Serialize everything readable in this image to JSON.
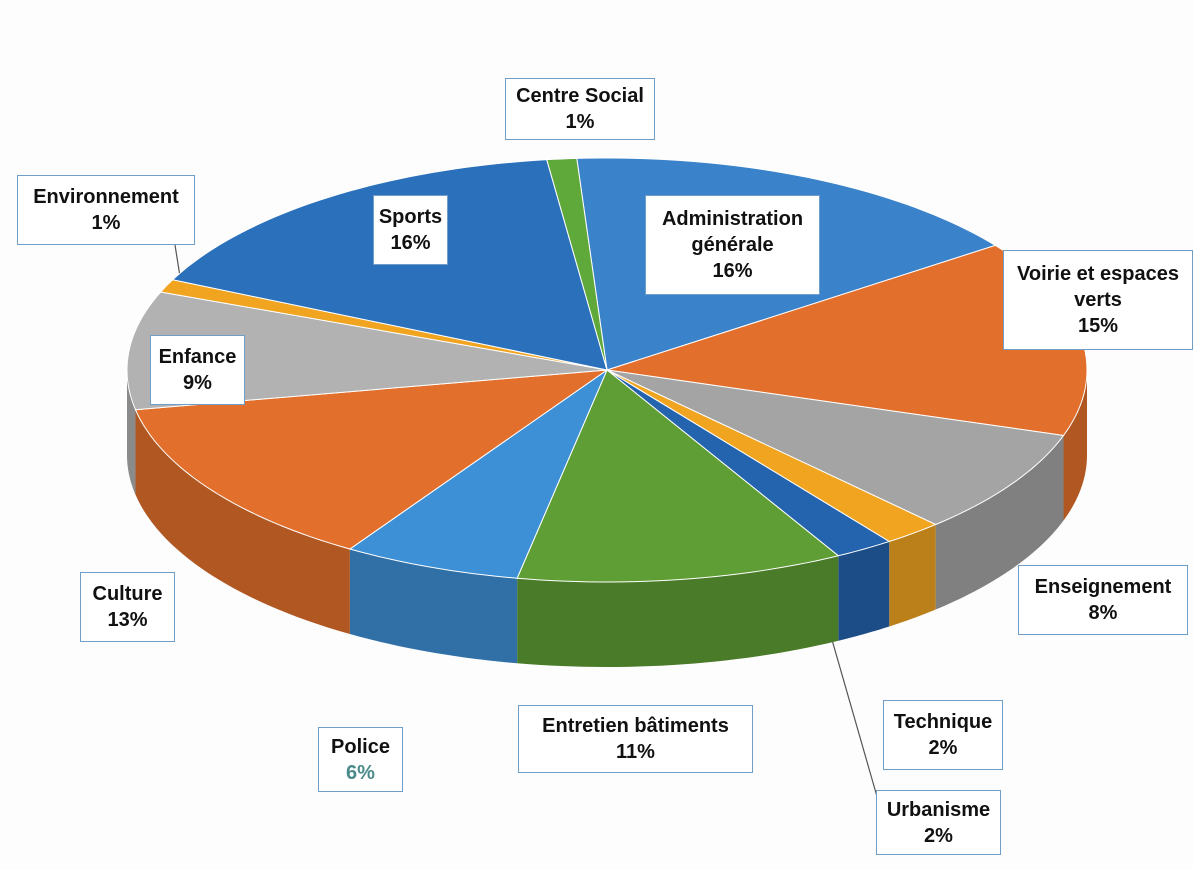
{
  "chart_data": {
    "type": "pie",
    "categories": [
      "Administration générale",
      "Voirie et espaces verts",
      "Enseignement",
      "Technique",
      "Urbanisme",
      "Entretien bâtiments",
      "Police",
      "Culture",
      "Enfance",
      "Environnement",
      "Sports",
      "Centre Social"
    ],
    "values": [
      16,
      15,
      8,
      2,
      2,
      11,
      6,
      13,
      9,
      1,
      16,
      1
    ],
    "value_labels": [
      "16%",
      "15%",
      "8%",
      "2%",
      "2%",
      "11%",
      "6%",
      "13%",
      "9%",
      "1%",
      "16%",
      "1%"
    ],
    "colors": [
      "#3a82c9",
      "#e2702c",
      "#a4a4a4",
      "#f0a420",
      "#2463ad",
      "#5f9e34",
      "#3d8fd6",
      "#e2702c",
      "#b2b2b2",
      "#f0a420",
      "#2a70bb",
      "#5fa83a"
    ]
  }
}
